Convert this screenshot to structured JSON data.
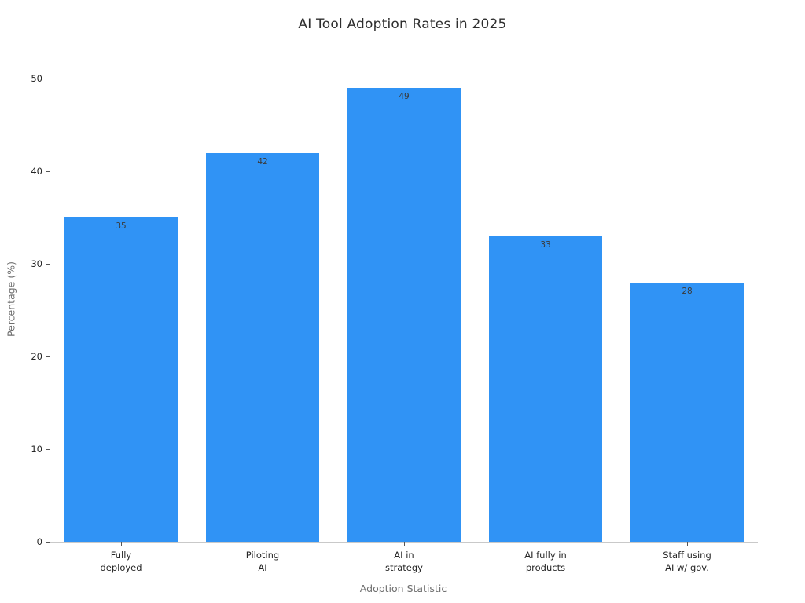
{
  "chart_data": {
    "type": "bar",
    "title": "AI Tool Adoption Rates in 2025",
    "xlabel": "Adoption Statistic",
    "ylabel": "Percentage (%)",
    "categories": [
      "Fully\ndeployed",
      "Piloting\nAI",
      "AI in\nstrategy",
      "AI fully in\nproducts",
      "Staff using\nAI w/ gov."
    ],
    "values": [
      35,
      42,
      49,
      33,
      28
    ],
    "bar_labels": [
      "35",
      "42",
      "49",
      "33",
      "28"
    ],
    "ylim": [
      0,
      52.4
    ],
    "yticks": [
      0,
      10,
      20,
      30,
      40,
      50
    ],
    "grid": false,
    "legend": "none",
    "bar_width_fraction": 0.8,
    "colors": {
      "bar": "#3093f5",
      "bar_label": "#3a3a3a",
      "tick_label": "#262626",
      "axis_label": "#6e6e6e",
      "spine": "#c9c9c9",
      "tick_mark": "#555555",
      "title": "#2e2e2e"
    }
  }
}
